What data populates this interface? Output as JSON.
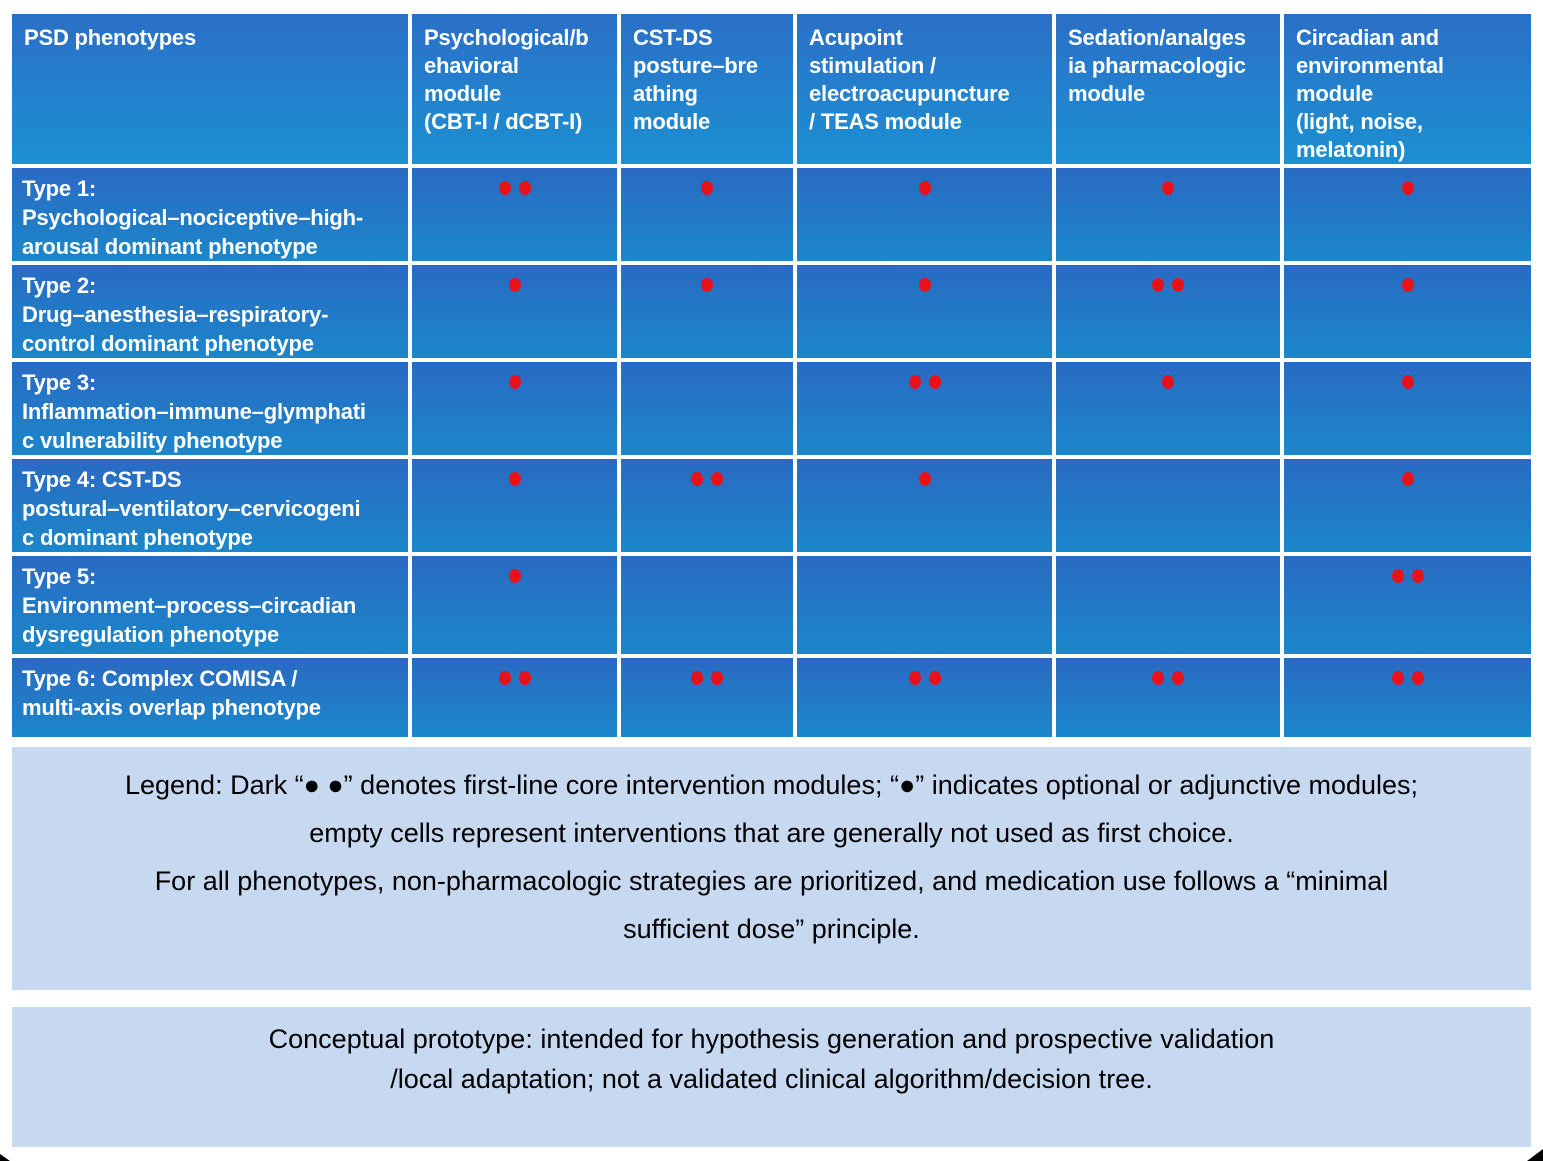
{
  "colors": {
    "cell_gradient_top": "#2a6ac3",
    "cell_gradient_bottom": "#1b87ca",
    "header_gradient_top": "#2b6fc7",
    "header_gradient_bottom": "#1c90d2",
    "dot_red": "#e8121a",
    "panel_blue": "#c7d9f1",
    "table_text": "#ffffff",
    "note_text": "#000000"
  },
  "table": {
    "columns": [
      "PSD phenotypes",
      "Psychological/b\nehavioral\nmodule\n(CBT-I / dCBT-I)",
      "CST-DS\nposture–bre\nathing\nmodule",
      "Acupoint\nstimulation /\nelectroacupuncture\n/ TEAS module",
      "Sedation/analges\nia pharmacologic\nmodule",
      "Circadian and\nenvironmental\nmodule\n(light, noise,\nmelatonin)"
    ],
    "rows": [
      {
        "label": "Type 1:\nPsychological–nociceptive–high-\narousal dominant phenotype",
        "dots": [
          2,
          1,
          1,
          1,
          1
        ]
      },
      {
        "label": "Type 2:\nDrug–anesthesia–respiratory-\ncontrol dominant phenotype",
        "dots": [
          1,
          1,
          1,
          2,
          1
        ]
      },
      {
        "label": "Type 3:\nInflammation–immune–glymphati\nc vulnerability phenotype",
        "dots": [
          1,
          0,
          2,
          1,
          1
        ]
      },
      {
        "label": "Type 4: CST-DS\npostural–ventilatory–cervicogeni\nc dominant phenotype",
        "dots": [
          1,
          2,
          1,
          0,
          1
        ]
      },
      {
        "label": "Type 5:\nEnvironment–process–circadian\ndysregulation phenotype",
        "dots": [
          1,
          0,
          0,
          0,
          2
        ]
      },
      {
        "label": "Type 6: Complex COMISA /\nmulti-axis overlap phenotype",
        "dots": [
          2,
          2,
          2,
          2,
          2
        ]
      }
    ]
  },
  "legend": {
    "lines": [
      "Legend: Dark “● ●” denotes first-line core intervention modules; “●” indicates optional or adjunctive modules;",
      "empty cells represent interventions that are generally not used as first choice.",
      "For all phenotypes, non-pharmacologic strategies are prioritized, and medication use follows a “minimal",
      "sufficient dose” principle."
    ]
  },
  "footnote": {
    "lines": [
      "Conceptual prototype: intended for hypothesis generation and prospective validation",
      "/local adaptation; not a validated clinical algorithm/decision tree."
    ]
  },
  "chart_data": {
    "type": "table",
    "title": "PSD phenotype × intervention module matrix",
    "columns": [
      "Psychological/behavioral module (CBT-I / dCBT-I)",
      "CST-DS posture–breathing module",
      "Acupoint stimulation / electroacupuncture / TEAS module",
      "Sedation/analgesia pharmacologic module",
      "Circadian and environmental module (light, noise, melatonin)"
    ],
    "rows": [
      "Type 1: Psychological–nociceptive–high-arousal dominant phenotype",
      "Type 2: Drug–anesthesia–respiratory-control dominant phenotype",
      "Type 3: Inflammation–immune–glymphatic vulnerability phenotype",
      "Type 4: CST-DS postural–ventilatory–cervicogenic dominant phenotype",
      "Type 5: Environment–process–circadian dysregulation phenotype",
      "Type 6: Complex COMISA / multi-axis overlap phenotype"
    ],
    "values": [
      [
        2,
        1,
        1,
        1,
        1
      ],
      [
        1,
        1,
        1,
        2,
        1
      ],
      [
        1,
        0,
        2,
        1,
        1
      ],
      [
        1,
        2,
        1,
        0,
        1
      ],
      [
        1,
        0,
        0,
        0,
        2
      ],
      [
        2,
        2,
        2,
        2,
        2
      ]
    ],
    "value_meaning": {
      "2": "●● first-line core intervention module",
      "1": "● optional or adjunctive module",
      "0": "empty cell – generally not used as first choice"
    }
  }
}
